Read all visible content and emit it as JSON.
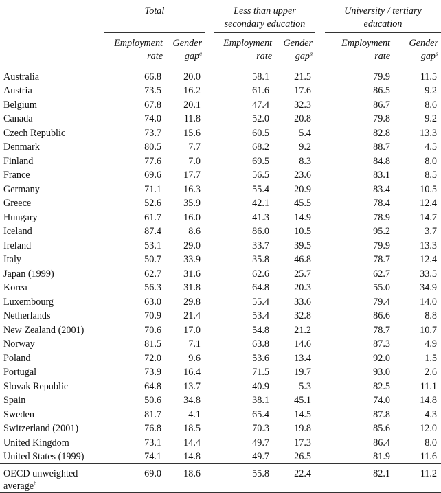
{
  "header": {
    "groups": {
      "total": "Total",
      "less": "Less than upper secondary education",
      "univ": "University / tertiary education"
    },
    "sub": {
      "employment_rate": "Employment rate",
      "gender_gap": "Gender gap",
      "gap_sup": "a"
    }
  },
  "rows": [
    {
      "country": "Australia",
      "t_emp": "66.8",
      "t_gap": "20.0",
      "l_emp": "58.1",
      "l_gap": "21.5",
      "u_emp": "79.9",
      "u_gap": "11.5"
    },
    {
      "country": "Austria",
      "t_emp": "73.5",
      "t_gap": "16.2",
      "l_emp": "61.6",
      "l_gap": "17.6",
      "u_emp": "86.5",
      "u_gap": "9.2"
    },
    {
      "country": "Belgium",
      "t_emp": "67.8",
      "t_gap": "20.1",
      "l_emp": "47.4",
      "l_gap": "32.3",
      "u_emp": "86.7",
      "u_gap": "8.6"
    },
    {
      "country": "Canada",
      "t_emp": "74.0",
      "t_gap": "11.8",
      "l_emp": "52.0",
      "l_gap": "20.8",
      "u_emp": "79.8",
      "u_gap": "9.2"
    },
    {
      "country": "Czech Republic",
      "t_emp": "73.7",
      "t_gap": "15.6",
      "l_emp": "60.5",
      "l_gap": "5.4",
      "u_emp": "82.8",
      "u_gap": "13.3"
    },
    {
      "country": "Denmark",
      "t_emp": "80.5",
      "t_gap": "7.7",
      "l_emp": "68.2",
      "l_gap": "9.2",
      "u_emp": "88.7",
      "u_gap": "4.5"
    },
    {
      "country": "Finland",
      "t_emp": "77.6",
      "t_gap": "7.0",
      "l_emp": "69.5",
      "l_gap": "8.3",
      "u_emp": "84.8",
      "u_gap": "8.0"
    },
    {
      "country": "France",
      "t_emp": "69.6",
      "t_gap": "17.7",
      "l_emp": "56.5",
      "l_gap": "23.6",
      "u_emp": "83.1",
      "u_gap": "8.5"
    },
    {
      "country": "Germany",
      "t_emp": "71.1",
      "t_gap": "16.3",
      "l_emp": "55.4",
      "l_gap": "20.9",
      "u_emp": "83.4",
      "u_gap": "10.5"
    },
    {
      "country": "Greece",
      "t_emp": "52.6",
      "t_gap": "35.9",
      "l_emp": "42.1",
      "l_gap": "45.5",
      "u_emp": "78.4",
      "u_gap": "12.4"
    },
    {
      "country": "Hungary",
      "t_emp": "61.7",
      "t_gap": "16.0",
      "l_emp": "41.3",
      "l_gap": "14.9",
      "u_emp": "78.9",
      "u_gap": "14.7"
    },
    {
      "country": "Iceland",
      "t_emp": "87.4",
      "t_gap": "8.6",
      "l_emp": "86.0",
      "l_gap": "10.5",
      "u_emp": "95.2",
      "u_gap": "3.7"
    },
    {
      "country": "Ireland",
      "t_emp": "53.1",
      "t_gap": "29.0",
      "l_emp": "33.7",
      "l_gap": "39.5",
      "u_emp": "79.9",
      "u_gap": "13.3"
    },
    {
      "country": "Italy",
      "t_emp": "50.7",
      "t_gap": "33.9",
      "l_emp": "35.8",
      "l_gap": "46.8",
      "u_emp": "78.7",
      "u_gap": "12.4"
    },
    {
      "country": "Japan (1999)",
      "t_emp": "62.7",
      "t_gap": "31.6",
      "l_emp": "62.6",
      "l_gap": "25.7",
      "u_emp": "62.7",
      "u_gap": "33.5"
    },
    {
      "country": "Korea",
      "t_emp": "56.3",
      "t_gap": "31.8",
      "l_emp": "64.8",
      "l_gap": "20.3",
      "u_emp": "55.0",
      "u_gap": "34.9"
    },
    {
      "country": "Luxembourg",
      "t_emp": "63.0",
      "t_gap": "29.8",
      "l_emp": "55.4",
      "l_gap": "33.6",
      "u_emp": "79.4",
      "u_gap": "14.0"
    },
    {
      "country": "Netherlands",
      "t_emp": "70.9",
      "t_gap": "21.4",
      "l_emp": "53.4",
      "l_gap": "32.8",
      "u_emp": "86.6",
      "u_gap": "8.8"
    },
    {
      "country": "New Zealand (2001)",
      "t_emp": "70.6",
      "t_gap": "17.0",
      "l_emp": "54.8",
      "l_gap": "21.2",
      "u_emp": "78.7",
      "u_gap": "10.7"
    },
    {
      "country": "Norway",
      "t_emp": "81.5",
      "t_gap": "7.1",
      "l_emp": "63.8",
      "l_gap": "14.6",
      "u_emp": "87.3",
      "u_gap": "4.9"
    },
    {
      "country": "Poland",
      "t_emp": "72.0",
      "t_gap": "9.6",
      "l_emp": "53.6",
      "l_gap": "13.4",
      "u_emp": "92.0",
      "u_gap": "1.5"
    },
    {
      "country": "Portugal",
      "t_emp": "73.9",
      "t_gap": "16.4",
      "l_emp": "71.5",
      "l_gap": "19.7",
      "u_emp": "93.0",
      "u_gap": "2.6"
    },
    {
      "country": "Slovak Republic",
      "t_emp": "64.8",
      "t_gap": "13.7",
      "l_emp": "40.9",
      "l_gap": "5.3",
      "u_emp": "82.5",
      "u_gap": "11.1"
    },
    {
      "country": "Spain",
      "t_emp": "50.6",
      "t_gap": "34.8",
      "l_emp": "38.1",
      "l_gap": "45.1",
      "u_emp": "74.0",
      "u_gap": "14.8"
    },
    {
      "country": "Sweden",
      "t_emp": "81.7",
      "t_gap": "4.1",
      "l_emp": "65.4",
      "l_gap": "14.5",
      "u_emp": "87.8",
      "u_gap": "4.3"
    },
    {
      "country": "Switzerland (2001)",
      "t_emp": "76.8",
      "t_gap": "18.5",
      "l_emp": "70.3",
      "l_gap": "19.8",
      "u_emp": "85.6",
      "u_gap": "12.0"
    },
    {
      "country": "United Kingdom",
      "t_emp": "73.1",
      "t_gap": "14.4",
      "l_emp": "49.7",
      "l_gap": "17.3",
      "u_emp": "86.4",
      "u_gap": "8.0"
    },
    {
      "country": "United States (1999)",
      "t_emp": "74.1",
      "t_gap": "14.8",
      "l_emp": "49.7",
      "l_gap": "26.5",
      "u_emp": "81.9",
      "u_gap": "11.6"
    }
  ],
  "average": {
    "label": "OECD unweighted average",
    "label_sup": "b",
    "t_emp": "69.0",
    "t_gap": "18.6",
    "l_emp": "55.8",
    "l_gap": "22.4",
    "u_emp": "82.1",
    "u_gap": "11.2"
  }
}
